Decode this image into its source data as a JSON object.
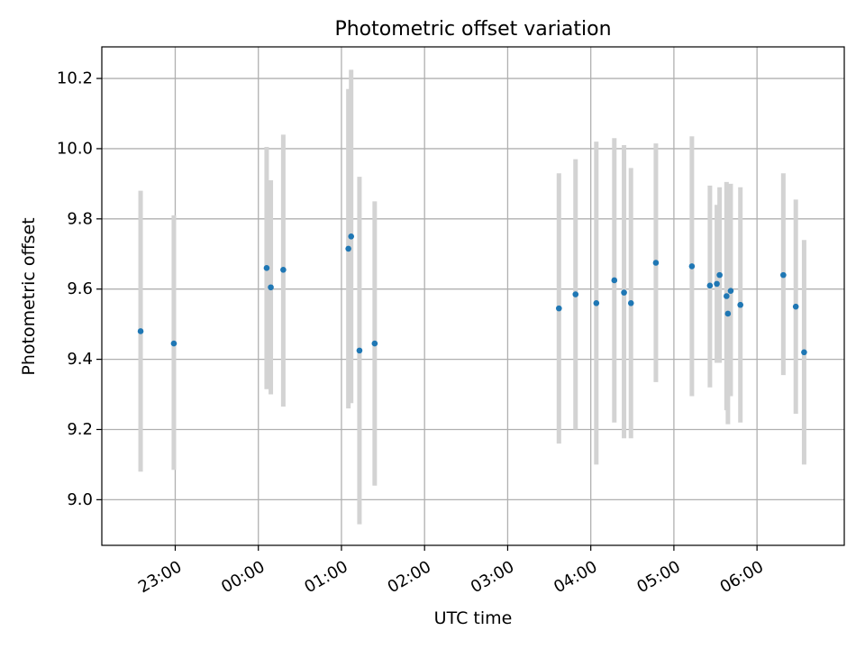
{
  "chart_data": {
    "type": "scatter",
    "title": "Photometric offset variation",
    "xlabel": "UTC time",
    "ylabel": "Photometric offset",
    "xlim": [
      "22:07",
      "07:03"
    ],
    "ylim": [
      8.87,
      10.29
    ],
    "grid": true,
    "x_tick_labels": [
      "23:00",
      "00:00",
      "01:00",
      "02:00",
      "03:00",
      "04:00",
      "05:00",
      "06:00"
    ],
    "y_tick_labels": [
      "9.0",
      "9.2",
      "9.4",
      "9.6",
      "9.8",
      "10.0",
      "10.2"
    ],
    "y_ticks": [
      9.0,
      9.2,
      9.4,
      9.6,
      9.8,
      10.0,
      10.2
    ],
    "colors": {
      "points": "#1f77b4",
      "errorbars": "#d3d3d3",
      "grid": "#b0b0b0"
    },
    "points": [
      {
        "t": "22:35",
        "y": 9.48,
        "lo": 9.08,
        "hi": 9.88
      },
      {
        "t": "22:59",
        "y": 9.445,
        "lo": 9.085,
        "hi": 9.81
      },
      {
        "t": "00:06",
        "y": 9.66,
        "lo": 9.315,
        "hi": 10.005
      },
      {
        "t": "00:09",
        "y": 9.605,
        "lo": 9.3,
        "hi": 9.91
      },
      {
        "t": "00:18",
        "y": 9.655,
        "lo": 9.265,
        "hi": 10.04
      },
      {
        "t": "01:05",
        "y": 9.715,
        "lo": 9.26,
        "hi": 10.17
      },
      {
        "t": "01:07",
        "y": 9.75,
        "lo": 9.275,
        "hi": 10.225
      },
      {
        "t": "01:13",
        "y": 9.425,
        "lo": 8.93,
        "hi": 9.92
      },
      {
        "t": "01:24",
        "y": 9.445,
        "lo": 9.04,
        "hi": 9.85
      },
      {
        "t": "03:37",
        "y": 9.545,
        "lo": 9.16,
        "hi": 9.93
      },
      {
        "t": "03:49",
        "y": 9.585,
        "lo": 9.2,
        "hi": 9.97
      },
      {
        "t": "04:04",
        "y": 9.56,
        "lo": 9.1,
        "hi": 10.02
      },
      {
        "t": "04:17",
        "y": 9.625,
        "lo": 9.22,
        "hi": 10.03
      },
      {
        "t": "04:24",
        "y": 9.59,
        "lo": 9.175,
        "hi": 10.01
      },
      {
        "t": "04:29",
        "y": 9.56,
        "lo": 9.175,
        "hi": 9.945
      },
      {
        "t": "04:47",
        "y": 9.675,
        "lo": 9.335,
        "hi": 10.015
      },
      {
        "t": "05:13",
        "y": 9.665,
        "lo": 9.295,
        "hi": 10.035
      },
      {
        "t": "05:26",
        "y": 9.61,
        "lo": 9.32,
        "hi": 9.895
      },
      {
        "t": "05:31",
        "y": 9.615,
        "lo": 9.39,
        "hi": 9.84
      },
      {
        "t": "05:33",
        "y": 9.64,
        "lo": 9.39,
        "hi": 9.89
      },
      {
        "t": "05:38",
        "y": 9.58,
        "lo": 9.255,
        "hi": 9.905
      },
      {
        "t": "05:39",
        "y": 9.53,
        "lo": 9.215,
        "hi": 9.85
      },
      {
        "t": "05:41",
        "y": 9.595,
        "lo": 9.295,
        "hi": 9.9
      },
      {
        "t": "05:48",
        "y": 9.555,
        "lo": 9.22,
        "hi": 9.89
      },
      {
        "t": "06:19",
        "y": 9.64,
        "lo": 9.355,
        "hi": 9.93
      },
      {
        "t": "06:28",
        "y": 9.55,
        "lo": 9.245,
        "hi": 9.855
      },
      {
        "t": "06:34",
        "y": 9.42,
        "lo": 9.1,
        "hi": 9.74
      }
    ]
  }
}
